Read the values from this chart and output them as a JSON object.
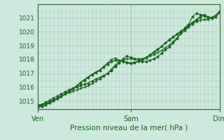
{
  "bg_color": "#cde8dc",
  "grid_color": "#b0d4c4",
  "line_color": "#1a6622",
  "marker_color": "#1a6622",
  "text_color": "#1a6622",
  "spine_color": "#336633",
  "ylabel_values": [
    1015,
    1016,
    1017,
    1018,
    1019,
    1020,
    1021
  ],
  "xlim": [
    0,
    47
  ],
  "ylim": [
    1014.4,
    1022.0
  ],
  "xtick_positions": [
    0,
    24,
    47
  ],
  "xtick_labels": [
    "Ven",
    "Sam",
    "Dim"
  ],
  "xlabel": "Pression niveau de la mer( hPa )",
  "line1_x": [
    0,
    1,
    2,
    3,
    4,
    5,
    6,
    7,
    8,
    9,
    10,
    11,
    12,
    13,
    14,
    15,
    16,
    17,
    18,
    19,
    20,
    21,
    22,
    23,
    24,
    25,
    26,
    27,
    28,
    29,
    30,
    31,
    32,
    33,
    34,
    35,
    36,
    37,
    38,
    39,
    40,
    41,
    42,
    43,
    44,
    45,
    46,
    47
  ],
  "line1_y": [
    1014.7,
    1014.75,
    1014.9,
    1015.05,
    1015.2,
    1015.35,
    1015.5,
    1015.65,
    1015.8,
    1015.9,
    1016.0,
    1016.1,
    1016.2,
    1016.3,
    1016.45,
    1016.6,
    1016.7,
    1016.85,
    1017.0,
    1017.2,
    1017.5,
    1017.75,
    1018.05,
    1018.25,
    1018.15,
    1018.05,
    1017.95,
    1017.85,
    1017.85,
    1017.95,
    1018.05,
    1018.2,
    1018.45,
    1018.7,
    1018.9,
    1019.2,
    1019.5,
    1019.9,
    1020.3,
    1020.55,
    1021.1,
    1021.35,
    1021.25,
    1021.15,
    1021.05,
    1021.05,
    1021.2,
    1021.5
  ],
  "line2_x": [
    0,
    1,
    2,
    3,
    4,
    5,
    6,
    7,
    8,
    9,
    10,
    11,
    12,
    13,
    14,
    15,
    16,
    17,
    18,
    19,
    20,
    21,
    22,
    23,
    24,
    25,
    26,
    27,
    28,
    29,
    30,
    31,
    32,
    33,
    34,
    35,
    36,
    37,
    38,
    39,
    40,
    41,
    42,
    43,
    44,
    45,
    46,
    47
  ],
  "line2_y": [
    1014.65,
    1014.7,
    1014.85,
    1014.95,
    1015.05,
    1015.2,
    1015.35,
    1015.5,
    1015.6,
    1015.7,
    1015.8,
    1015.9,
    1016.0,
    1016.1,
    1016.25,
    1016.45,
    1016.6,
    1016.8,
    1017.0,
    1017.3,
    1017.6,
    1017.85,
    1017.95,
    1018.05,
    1018.05,
    1018.05,
    1018.05,
    1018.05,
    1018.15,
    1018.25,
    1018.35,
    1018.5,
    1018.65,
    1018.85,
    1019.05,
    1019.3,
    1019.55,
    1019.85,
    1020.1,
    1020.35,
    1020.55,
    1020.75,
    1020.85,
    1020.9,
    1020.9,
    1021.0,
    1021.1,
    1021.4
  ],
  "line3_x": [
    0,
    1,
    2,
    3,
    4,
    5,
    6,
    7,
    8,
    9,
    10,
    11,
    12,
    13,
    14,
    15,
    16,
    17,
    18,
    19,
    20,
    21,
    22,
    23,
    24,
    25,
    26,
    27,
    28,
    29,
    30,
    31,
    32,
    33,
    34,
    35,
    36,
    37,
    38,
    39,
    40,
    41,
    42,
    43,
    44,
    45,
    46,
    47
  ],
  "line3_y": [
    1014.6,
    1014.65,
    1014.75,
    1014.9,
    1015.05,
    1015.2,
    1015.35,
    1015.55,
    1015.7,
    1015.9,
    1016.1,
    1016.35,
    1016.55,
    1016.75,
    1016.95,
    1017.1,
    1017.25,
    1017.5,
    1017.75,
    1018.0,
    1018.1,
    1017.95,
    1017.85,
    1017.75,
    1017.7,
    1017.75,
    1017.85,
    1017.95,
    1018.1,
    1018.3,
    1018.5,
    1018.7,
    1018.95,
    1019.2,
    1019.45,
    1019.65,
    1019.85,
    1020.05,
    1020.25,
    1020.5,
    1020.7,
    1020.9,
    1021.1,
    1021.25,
    1021.1,
    1021.0,
    1021.1,
    1021.45
  ],
  "line4_x": [
    0,
    1,
    2,
    3,
    4,
    5,
    6,
    7,
    8,
    9,
    10,
    11,
    12,
    13,
    14,
    15,
    16,
    17,
    18,
    19,
    20,
    21,
    22,
    23,
    24,
    25,
    26,
    27,
    28,
    29,
    30,
    31,
    32,
    33,
    34,
    35,
    36,
    37,
    38,
    39,
    40,
    41,
    42,
    43,
    44,
    45,
    46,
    47
  ],
  "line4_y": [
    1014.55,
    1014.6,
    1014.7,
    1014.85,
    1015.0,
    1015.15,
    1015.3,
    1015.5,
    1015.65,
    1015.85,
    1016.05,
    1016.3,
    1016.5,
    1016.7,
    1016.9,
    1017.05,
    1017.2,
    1017.45,
    1017.65,
    1017.85,
    1017.95,
    1017.9,
    1017.85,
    1017.8,
    1017.75,
    1017.8,
    1017.9,
    1018.0,
    1018.15,
    1018.35,
    1018.55,
    1018.75,
    1018.95,
    1019.2,
    1019.4,
    1019.6,
    1019.8,
    1020.0,
    1020.2,
    1020.45,
    1020.65,
    1020.85,
    1021.05,
    1021.2,
    1021.05,
    1021.0,
    1021.1,
    1021.4
  ]
}
